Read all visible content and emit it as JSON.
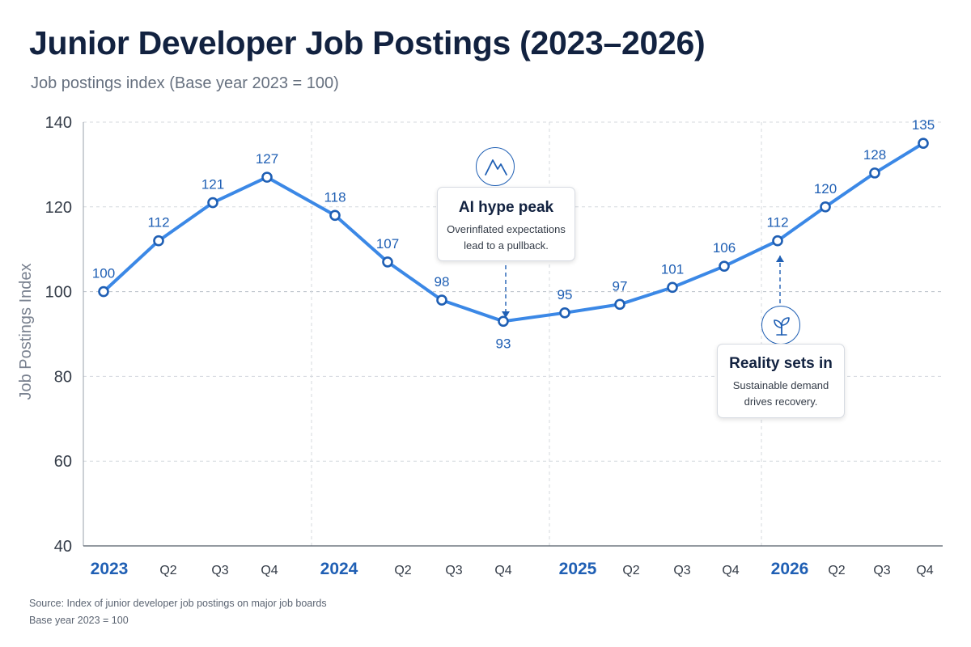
{
  "title": "Junior Developer Job Postings (2023–2026)",
  "subtitle": "Job postings index (Base year 2023 = 100)",
  "source": {
    "line1": "Source: Index of junior developer job postings on major job boards",
    "line2": "Base year 2023 = 100"
  },
  "colors": {
    "line": "#3b88e6",
    "label": "#1f5fb4",
    "title": "#122240",
    "grid": "#d4d8de"
  },
  "annotations": {
    "ai_hype": {
      "title": "AI hype peak",
      "body_line1": "Overinflated expectations",
      "body_line2": "lead to a pullback.",
      "icon": "mountain-icon",
      "points_to": "Q4 2024"
    },
    "reality": {
      "title": "Reality sets in",
      "body_line1": "Sustainable demand",
      "body_line2": "drives recovery.",
      "icon": "sprout-icon",
      "points_to": "2026"
    }
  },
  "chart_data": {
    "type": "line",
    "title": "Junior Developer Job Postings (2023–2026)",
    "subtitle": "Job postings index (Base year 2023 = 100)",
    "ylabel": "Job Postings Index",
    "xlabel": "",
    "ylim": [
      40,
      140
    ],
    "yticks": [
      40,
      60,
      80,
      100,
      120,
      140
    ],
    "grid": true,
    "legend": "none",
    "categories": [
      "2023",
      "Q2",
      "Q3",
      "Q4",
      "2024",
      "Q2",
      "Q3",
      "Q4",
      "2025",
      "Q2",
      "Q3",
      "Q4",
      "2026",
      "Q2",
      "Q3",
      "Q4"
    ],
    "year_categories": [
      "2023",
      "2024",
      "2025",
      "2026"
    ],
    "series": [
      {
        "values": [
          100,
          112,
          121,
          127,
          118,
          107,
          98,
          93,
          95,
          97,
          101,
          106,
          112,
          120,
          128,
          135
        ]
      }
    ]
  }
}
